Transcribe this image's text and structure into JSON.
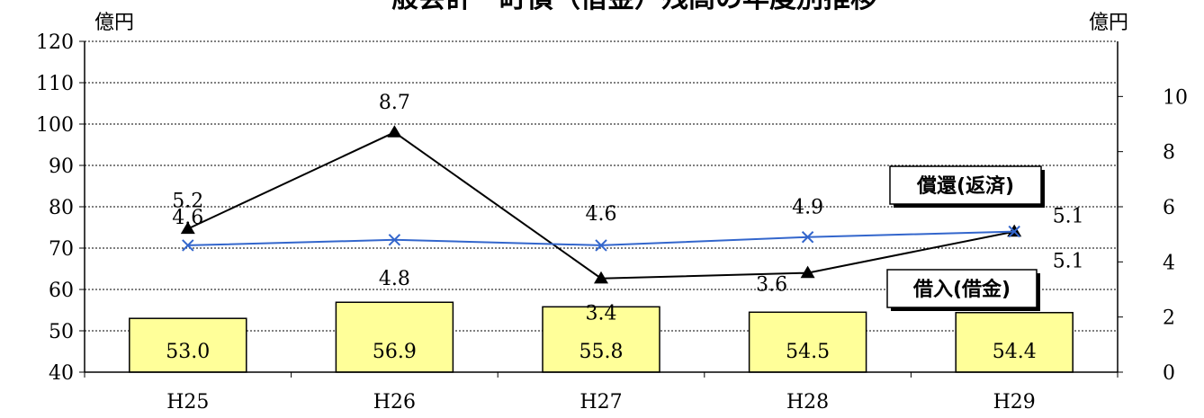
{
  "chart_data": {
    "type": "bar",
    "title": "一般会計　町債（借金）残高の年度別推移",
    "categories": [
      "H25",
      "H26",
      "H27",
      "H28",
      "H29"
    ],
    "left_axis": {
      "unit": "億円",
      "ylim": [
        40,
        120
      ],
      "ticks": [
        "120",
        "110",
        "100",
        "90",
        "80",
        "70",
        "60",
        "50",
        "40"
      ]
    },
    "right_axis": {
      "unit": "億円",
      "ylim": [
        0,
        12
      ],
      "ticks": [
        "10",
        "8",
        "6",
        "4",
        "2",
        "0"
      ]
    },
    "series": [
      {
        "name": "",
        "kind": "bar",
        "axis": "left",
        "color": "#FFFF99",
        "values": [
          53.0,
          56.9,
          55.8,
          54.5,
          54.4
        ],
        "labels": [
          "53.0",
          "56.9",
          "55.8",
          "54.5",
          "54.4"
        ]
      },
      {
        "name": "借入(借金)",
        "kind": "line",
        "axis": "right",
        "color": "#000000",
        "marker": "triangle",
        "values": [
          5.2,
          8.7,
          3.4,
          3.6,
          5.1
        ],
        "labels": [
          "5.2",
          "8.7",
          "3.4",
          "3.6",
          "5.1"
        ]
      },
      {
        "name": "償還(返済)",
        "kind": "line",
        "axis": "right",
        "color": "#3366CC",
        "marker": "x",
        "values": [
          4.6,
          4.8,
          4.6,
          4.9,
          5.1
        ],
        "labels": [
          "4.6",
          "4.8",
          "4.6",
          "4.9",
          "5.1"
        ]
      }
    ],
    "callouts": [
      "償還(返済)",
      "借入(借金)"
    ],
    "grid": true
  }
}
